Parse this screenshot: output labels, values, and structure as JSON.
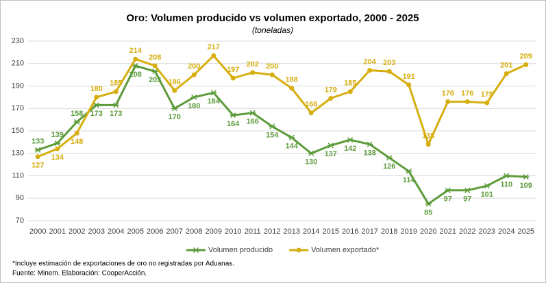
{
  "chart_data": {
    "type": "line",
    "title": "Oro: Volumen producido vs volumen exportado, 2000 - 2025",
    "subtitle": "(toneladas)",
    "categories": [
      "2000",
      "2001",
      "2002",
      "2003",
      "2004",
      "2005",
      "2006",
      "2007",
      "2008",
      "2009",
      "2010",
      "2011",
      "2012",
      "2013",
      "2014",
      "2015",
      "2016",
      "2017",
      "2018",
      "2019",
      "2020",
      "2021",
      "2022",
      "2023",
      "2024",
      "2025"
    ],
    "series": [
      {
        "name": "Volumen producido",
        "color": "#5b9b3a",
        "marker": "star",
        "values": [
          133,
          139,
          158,
          173,
          173,
          208,
          203,
          170,
          180,
          184,
          164,
          166,
          154,
          144,
          130,
          137,
          142,
          138,
          126,
          114,
          85,
          97,
          97,
          101,
          110,
          109
        ]
      },
      {
        "name": "Volumen exportado*",
        "color": "#d6ae0e",
        "marker": "circle",
        "values": [
          127,
          134,
          148,
          180,
          185,
          214,
          208,
          186,
          200,
          217,
          197,
          202,
          200,
          188,
          166,
          179,
          185,
          204,
          203,
          191,
          138,
          176,
          176,
          175,
          201,
          209
        ]
      }
    ],
    "ylim": [
      70,
      230
    ],
    "yticks": [
      70,
      90,
      110,
      130,
      150,
      170,
      190,
      210,
      230
    ],
    "grid": true,
    "legend": "bottom",
    "footnotes": [
      "*Incluye estimación de exportaciones de oro no registradas por Aduanas.",
      "Fuente: Minem. Elaboración: CooperAcción."
    ]
  }
}
